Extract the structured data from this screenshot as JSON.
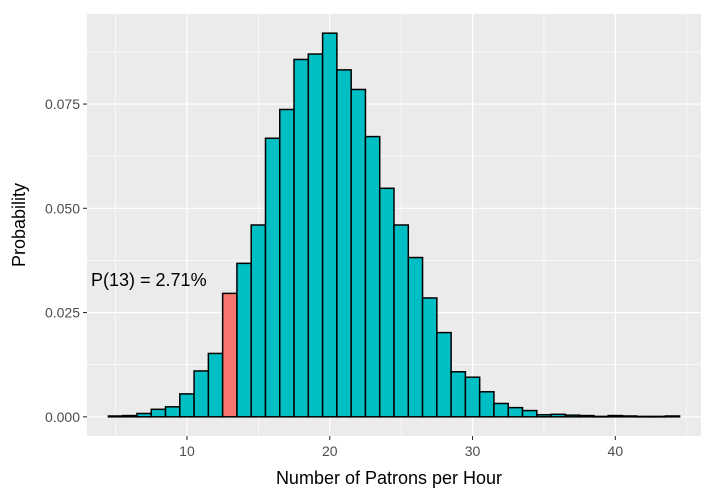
{
  "chart_data": {
    "type": "bar",
    "x": [
      5,
      6,
      7,
      8,
      9,
      10,
      11,
      12,
      13,
      14,
      15,
      16,
      17,
      18,
      19,
      20,
      21,
      22,
      23,
      24,
      25,
      26,
      27,
      28,
      29,
      30,
      31,
      32,
      33,
      34,
      35,
      36,
      37,
      38,
      39,
      40,
      41,
      42,
      43,
      44
    ],
    "values": [
      0.0002,
      0.0003,
      0.0008,
      0.0018,
      0.0024,
      0.0055,
      0.011,
      0.0152,
      0.0296,
      0.0368,
      0.046,
      0.0668,
      0.0737,
      0.0857,
      0.087,
      0.092,
      0.0832,
      0.0785,
      0.0672,
      0.0548,
      0.046,
      0.0382,
      0.0285,
      0.0202,
      0.0108,
      0.0095,
      0.006,
      0.0032,
      0.0022,
      0.0015,
      0.0005,
      0.0006,
      0.0004,
      0.0003,
      0.0001,
      0.0003,
      0.0002,
      0.0001,
      0.0001,
      0.0002
    ],
    "highlight_x": 13,
    "xlabel": "Number of Patrons per Hour",
    "ylabel": "Probability",
    "x_ticks": [
      10,
      20,
      30,
      40
    ],
    "y_ticks": [
      0.0,
      0.025,
      0.05,
      0.075
    ],
    "x_tick_labels": [
      "10",
      "20",
      "30",
      "40"
    ],
    "y_tick_labels": [
      "0.000",
      "0.025",
      "0.050",
      "0.075"
    ],
    "xlim": [
      3,
      46
    ],
    "ylim": [
      -0.0046,
      0.0966
    ],
    "grid": true,
    "annotation": "P(13) = 2.71%",
    "colors": {
      "panel": "#ebebeb",
      "bar_fill": "#00bfc4",
      "highlight_fill": "#f8766d",
      "bar_stroke": "#000000",
      "grid": "#ffffff"
    }
  }
}
